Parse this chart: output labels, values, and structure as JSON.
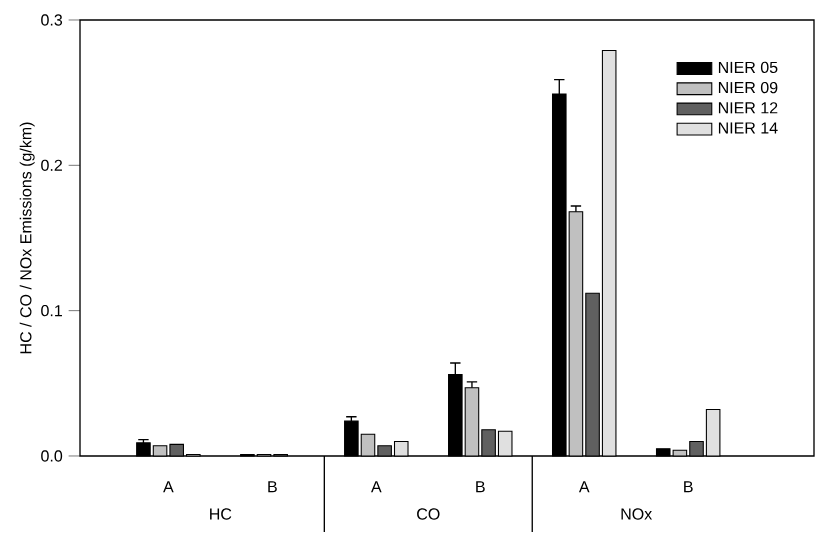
{
  "chart_data": {
    "type": "bar",
    "ylabel": "HC / CO / NOx Emissions (g/km)",
    "categories": [
      "A",
      "B",
      "A",
      "B",
      "A",
      "B"
    ],
    "annotations": [
      "HC",
      "CO",
      "NOx"
    ],
    "series": [
      {
        "name": "NIER 05",
        "color": "#000000",
        "values": [
          0.009,
          0.001,
          0.024,
          0.056,
          0.249,
          0.005
        ],
        "errors": [
          0.0023,
          null,
          0.003,
          0.008,
          0.01,
          null
        ]
      },
      {
        "name": "NIER 09",
        "color": "#c0c0c0",
        "values": [
          0.007,
          0.001,
          0.015,
          0.047,
          0.168,
          0.004
        ],
        "errors": [
          null,
          null,
          null,
          0.004,
          0.004,
          null
        ]
      },
      {
        "name": "NIER 12",
        "color": "#606060",
        "values": [
          0.008,
          0.001,
          0.007,
          0.018,
          0.112,
          0.01
        ],
        "errors": [
          null,
          null,
          null,
          null,
          null,
          null
        ]
      },
      {
        "name": "NIER 14",
        "color": "#e0e0e0",
        "values": [
          0.001,
          null,
          0.01,
          0.017,
          0.279,
          0.032
        ],
        "errors": [
          null,
          null,
          null,
          null,
          null,
          null
        ]
      }
    ],
    "ylim": [
      0,
      0.3
    ],
    "yticks": [
      {
        "value": 0,
        "label": "0.0"
      },
      0.1,
      0.2,
      0.3
    ],
    "legend": "top right",
    "grid": false
  }
}
